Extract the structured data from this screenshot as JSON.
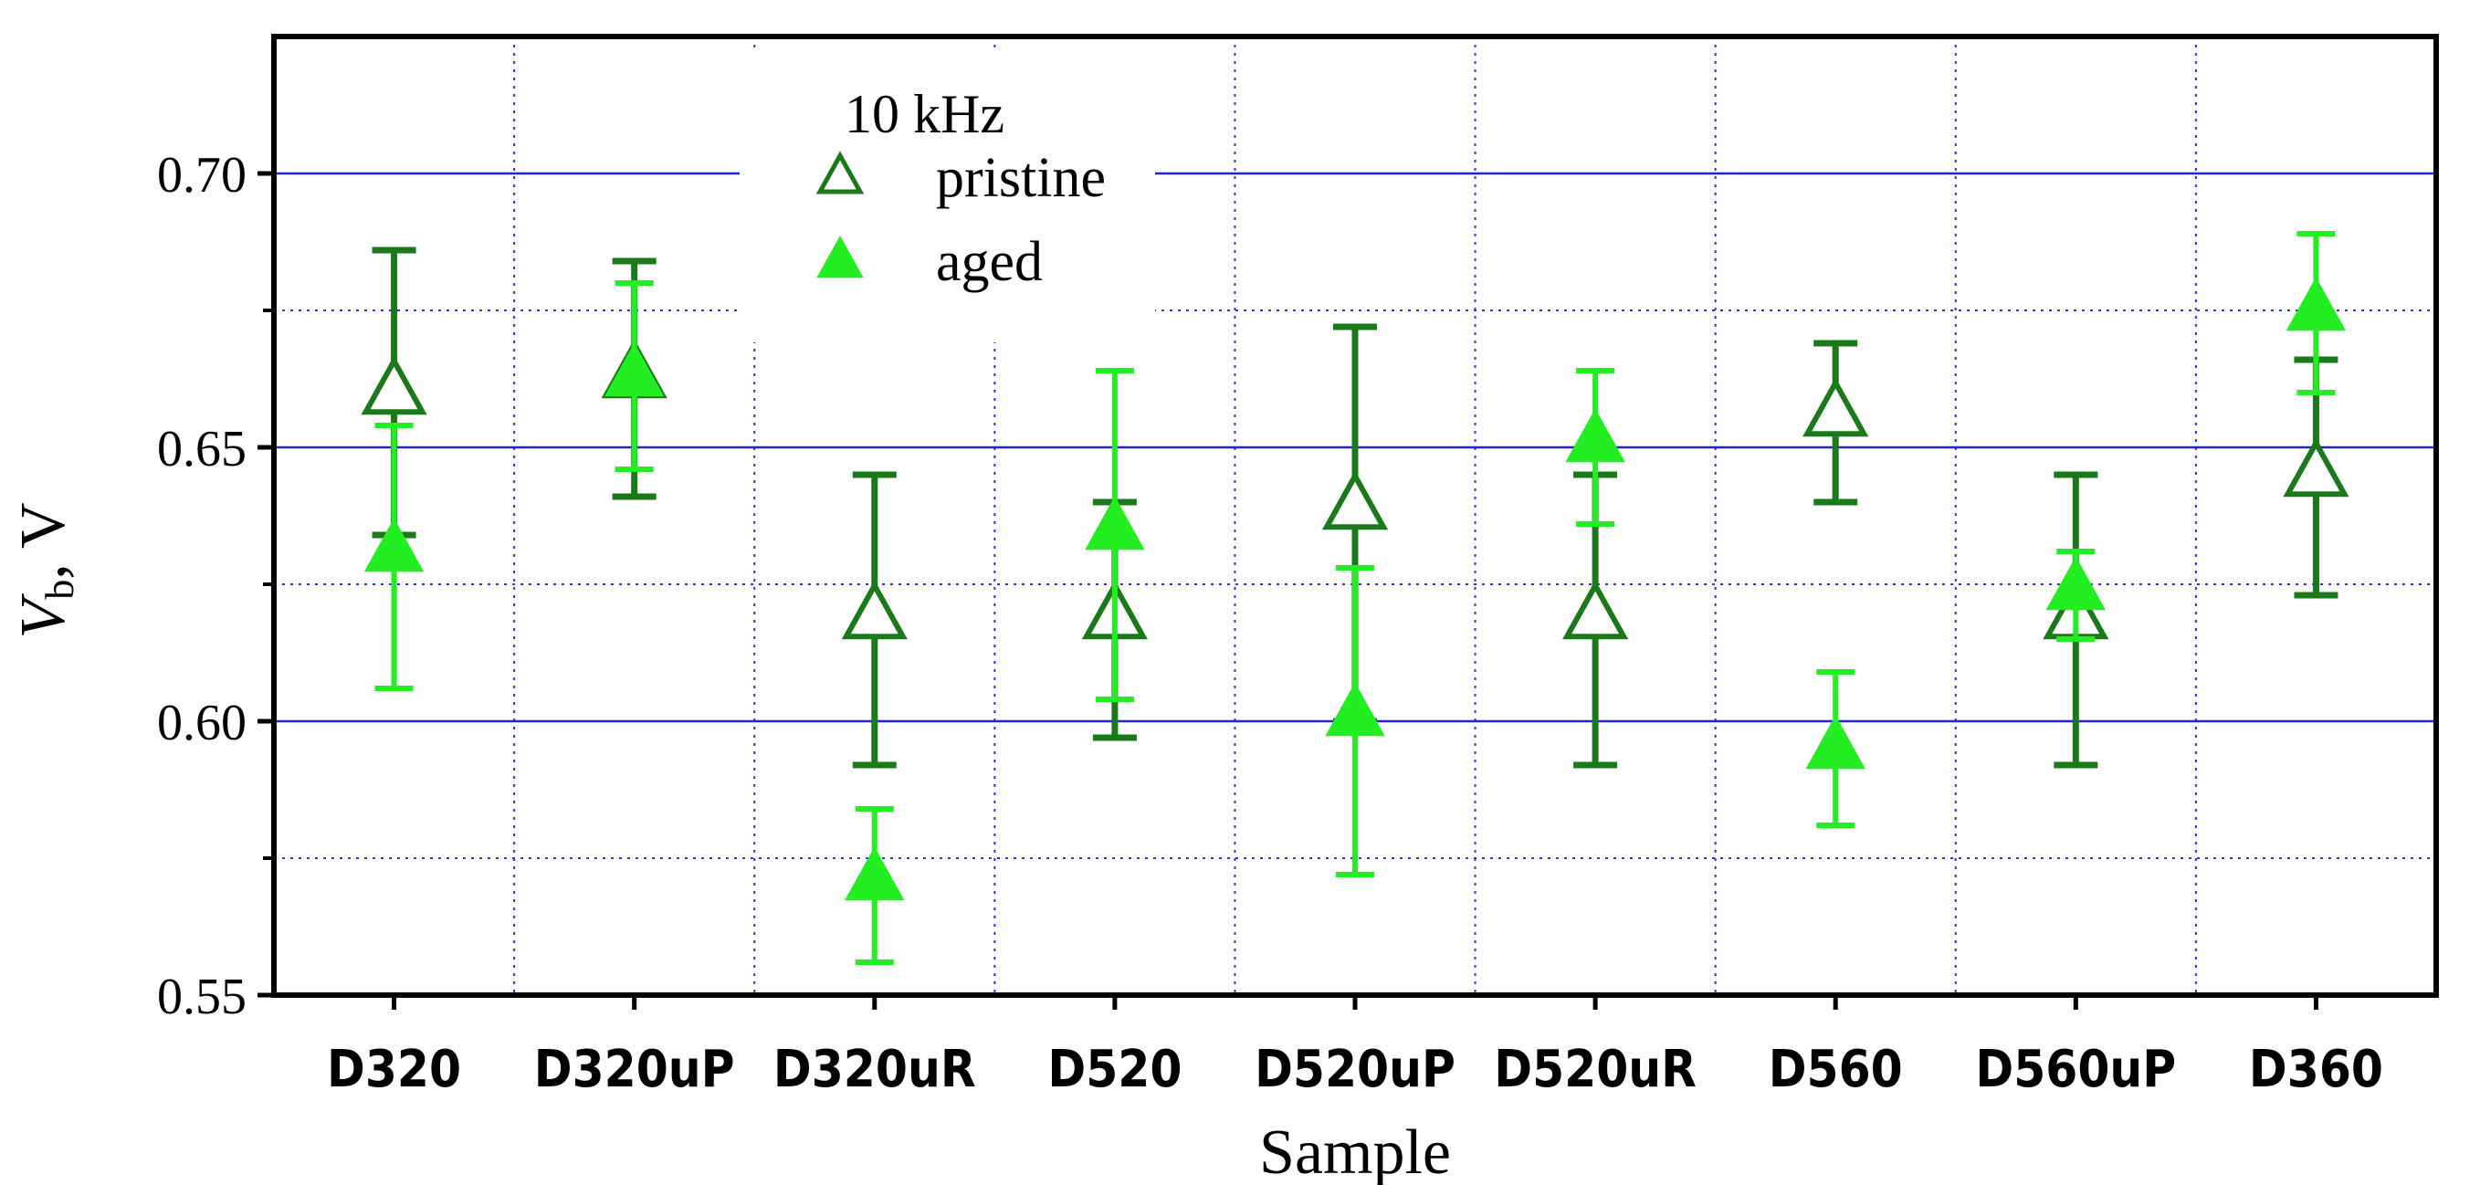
{
  "chart_data": {
    "type": "scatter",
    "title": "",
    "xlabel": "Sample",
    "ylabel_main": "V",
    "ylabel_sub": "b",
    "ylabel_unit": ", V",
    "ylim": [
      0.55,
      0.725
    ],
    "yticks": [
      0.55,
      0.6,
      0.65,
      0.7
    ],
    "ytick_labels": [
      "0.55",
      "0.60",
      "0.65",
      "0.70"
    ],
    "grid": true,
    "legend_title": "10 kHz",
    "legend_position": "top-left",
    "categories": [
      "D320",
      "D320uP",
      "D320uR",
      "D520",
      "D520uP",
      "D520uR",
      "D560",
      "D560uP",
      "D360"
    ],
    "series": [
      {
        "name": "pristine",
        "marker": "open-triangle",
        "color": "#1a7a1a",
        "values": [
          0.66,
          0.663,
          0.619,
          0.619,
          0.639,
          0.619,
          0.656,
          0.619,
          0.645
        ],
        "err_low": [
          0.634,
          0.641,
          0.592,
          0.597,
          0.6,
          0.592,
          0.64,
          0.592,
          0.623
        ],
        "err_high": [
          0.686,
          0.684,
          0.645,
          0.64,
          0.672,
          0.645,
          0.669,
          0.645,
          0.666
        ]
      },
      {
        "name": "aged",
        "marker": "filled-triangle",
        "color": "#22ee22",
        "values": [
          0.631,
          0.663,
          0.571,
          0.635,
          0.601,
          0.651,
          0.595,
          0.624,
          0.675
        ],
        "err_low": [
          0.606,
          0.646,
          0.556,
          0.604,
          0.572,
          0.636,
          0.581,
          0.615,
          0.66
        ],
        "err_high": [
          0.654,
          0.68,
          0.584,
          0.664,
          0.628,
          0.664,
          0.609,
          0.631,
          0.689
        ]
      }
    ]
  }
}
